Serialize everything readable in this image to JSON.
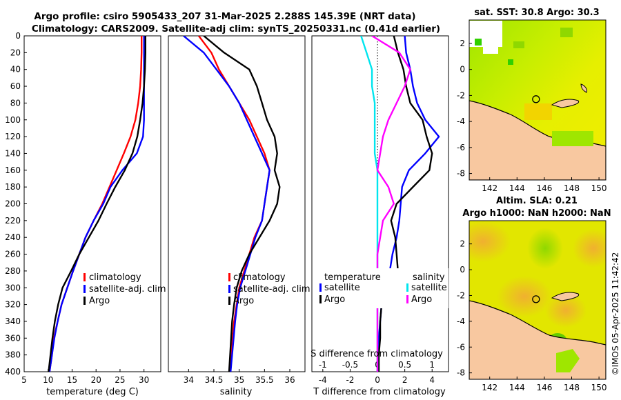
{
  "header": {
    "line1": "Argo profile: csiro 5905433_207 31-Mar-2025 2.288S 145.39E (NRT data)",
    "line2": "Climatology: CARS2009. Satellite-adj clim: synTS_20250331.nc (0.41d earlier)"
  },
  "colors": {
    "climatology": "#ff0000",
    "satellite": "#0000ff",
    "argo": "#000000",
    "sat_salinity": "#00e5ee",
    "argo_salinity": "#ff00ff",
    "land": "#f8c8a0"
  },
  "chart_data": [
    {
      "type": "line",
      "panel": "temperature",
      "xlabel": "temperature (deg C)",
      "ylabel": "",
      "xlim": [
        5,
        33.5
      ],
      "ylim": [
        400,
        0
      ],
      "xticks": [
        5,
        10,
        15,
        20,
        25,
        30
      ],
      "yticks": [
        0,
        20,
        40,
        60,
        80,
        100,
        120,
        140,
        160,
        180,
        200,
        220,
        240,
        260,
        280,
        300,
        320,
        340,
        360,
        380,
        400
      ],
      "legend": [
        "climatology",
        "satellite-adj. clim",
        "Argo"
      ],
      "legend_position": "bottom-right",
      "series": [
        {
          "name": "climatology",
          "color": "#ff0000",
          "x": [
            29.5,
            29.5,
            29.4,
            29.2,
            28.8,
            28.2,
            27.2,
            25.8,
            24.3,
            22.8,
            21.3,
            19.5,
            17.8,
            16.5,
            15.2,
            14.0,
            12.8,
            12.0,
            11.2,
            10.8,
            10.3
          ],
          "y": [
            0,
            20,
            40,
            60,
            80,
            100,
            120,
            140,
            160,
            180,
            200,
            220,
            240,
            260,
            280,
            300,
            320,
            340,
            360,
            380,
            400
          ]
        },
        {
          "name": "satellite-adj. clim",
          "color": "#0000ff",
          "x": [
            30.0,
            30.0,
            30.0,
            30.0,
            30.0,
            30.0,
            29.8,
            28.5,
            25.5,
            23.0,
            21.5,
            19.5,
            17.8,
            16.5,
            15.2,
            14.0,
            12.8,
            12.0,
            11.3,
            10.8,
            10.3
          ],
          "y": [
            0,
            20,
            40,
            60,
            80,
            100,
            120,
            140,
            160,
            180,
            200,
            220,
            240,
            260,
            280,
            300,
            320,
            340,
            360,
            380,
            400
          ]
        },
        {
          "name": "Argo",
          "color": "#000000",
          "x": [
            30.3,
            30.3,
            30.2,
            30.0,
            29.7,
            29.2,
            28.6,
            27.6,
            26.0,
            24.0,
            22.2,
            20.5,
            18.5,
            16.5,
            14.8,
            13.0,
            12.1,
            11.4,
            10.9,
            10.5,
            10.1
          ],
          "y": [
            0,
            20,
            40,
            60,
            80,
            100,
            120,
            140,
            160,
            180,
            200,
            220,
            240,
            260,
            280,
            300,
            320,
            340,
            360,
            380,
            400
          ]
        }
      ]
    },
    {
      "type": "line",
      "panel": "salinity",
      "xlabel": "salinity",
      "xlim": [
        33.6,
        36.3
      ],
      "ylim": [
        400,
        0
      ],
      "xticks": [
        34,
        34.5,
        35,
        35.5,
        36
      ],
      "legend": [
        "climatology",
        "satellite-adj. clim",
        "Argo"
      ],
      "legend_position": "bottom-right",
      "series": [
        {
          "name": "climatology",
          "color": "#ff0000",
          "x": [
            34.2,
            34.45,
            34.6,
            34.8,
            35.0,
            35.2,
            35.35,
            35.5,
            35.6,
            35.55,
            35.5,
            35.45,
            35.3,
            35.2,
            35.1,
            35.0,
            34.95,
            34.9,
            34.87,
            34.85,
            34.82
          ],
          "y": [
            0,
            20,
            40,
            60,
            80,
            100,
            120,
            140,
            160,
            180,
            200,
            220,
            240,
            260,
            280,
            300,
            320,
            340,
            360,
            380,
            400
          ]
        },
        {
          "name": "satellite-adj. clim",
          "color": "#0000ff",
          "x": [
            33.9,
            34.3,
            34.55,
            34.8,
            35.0,
            35.15,
            35.3,
            35.45,
            35.6,
            35.55,
            35.5,
            35.45,
            35.32,
            35.22,
            35.12,
            35.02,
            34.96,
            34.92,
            34.89,
            34.86,
            34.83
          ],
          "y": [
            0,
            20,
            40,
            60,
            80,
            100,
            120,
            140,
            160,
            180,
            200,
            220,
            240,
            260,
            280,
            300,
            320,
            340,
            360,
            380,
            400
          ]
        },
        {
          "name": "Argo",
          "color": "#000000",
          "x": [
            34.3,
            34.7,
            35.2,
            35.35,
            35.45,
            35.55,
            35.7,
            35.75,
            35.7,
            35.8,
            35.75,
            35.6,
            35.4,
            35.2,
            35.05,
            34.95,
            34.9,
            34.86,
            34.84,
            34.82,
            34.8
          ],
          "y": [
            0,
            20,
            40,
            60,
            80,
            100,
            120,
            140,
            160,
            180,
            200,
            220,
            240,
            260,
            280,
            300,
            320,
            340,
            360,
            380,
            400
          ]
        }
      ]
    },
    {
      "type": "line",
      "panel": "difference",
      "xlabel": "T difference from climatology",
      "xlabel_top": "S difference from climatology",
      "xlim": [
        -4.8,
        5.2
      ],
      "xticks": [
        -4,
        -2,
        0,
        2,
        4
      ],
      "x2lim": [
        -1.2,
        1.3
      ],
      "x2ticks": [
        -1,
        -0.5,
        0,
        0.5,
        1
      ],
      "x2ticklabels": [
        "-1",
        "-0.5",
        "0",
        "0.5",
        "1"
      ],
      "ylim": [
        400,
        0
      ],
      "legend_temperature_title": "temperature",
      "legend_salinity_title": "salinity",
      "legend_temperature": [
        "satellite",
        "Argo"
      ],
      "legend_salinity": [
        "satellite",
        "Argo"
      ],
      "series": [
        {
          "name": "temperature satellite",
          "color": "#0000ff",
          "axis": "T",
          "x": [
            2.0,
            2.1,
            2.4,
            2.6,
            2.9,
            3.5,
            4.5,
            3.5,
            2.3,
            1.8,
            1.7,
            1.6,
            1.4,
            1.1,
            0.9,
            0.6,
            0.3,
            0.2,
            0.1,
            0.05,
            0.0
          ],
          "y": [
            0,
            20,
            40,
            60,
            80,
            100,
            120,
            140,
            160,
            180,
            200,
            220,
            240,
            260,
            280,
            300,
            320,
            340,
            360,
            380,
            400
          ]
        },
        {
          "name": "temperature Argo",
          "color": "#000000",
          "axis": "T",
          "x": [
            1.2,
            1.5,
            1.9,
            2.1,
            2.4,
            3.3,
            3.6,
            4.0,
            3.8,
            2.6,
            1.4,
            1.0,
            1.3,
            1.4,
            1.5,
            0.8,
            0.3,
            0.2,
            0.2,
            0.1,
            0.1
          ],
          "y": [
            0,
            20,
            40,
            60,
            80,
            100,
            120,
            140,
            160,
            180,
            200,
            220,
            240,
            260,
            280,
            300,
            320,
            340,
            360,
            380,
            400
          ]
        },
        {
          "name": "salinity satellite",
          "color": "#00e5ee",
          "axis": "S",
          "x": [
            -0.3,
            -0.2,
            -0.1,
            -0.1,
            -0.05,
            -0.05,
            -0.05,
            -0.05,
            0.0,
            0.0,
            0.0,
            0.0,
            0.0,
            0.0,
            0.0,
            0.0,
            0.0,
            0.0,
            0.0,
            0.0,
            0.0
          ],
          "y": [
            0,
            20,
            40,
            60,
            80,
            100,
            120,
            140,
            160,
            180,
            200,
            220,
            240,
            260,
            280,
            300,
            320,
            340,
            360,
            380,
            400
          ]
        },
        {
          "name": "salinity Argo",
          "color": "#ff00ff",
          "axis": "S",
          "x": [
            -0.1,
            0.4,
            0.6,
            0.5,
            0.35,
            0.2,
            0.1,
            0.05,
            0.0,
            0.2,
            0.3,
            0.1,
            0.05,
            0.0,
            0.0,
            0.0,
            0.0,
            0.0,
            0.0,
            0.0,
            0.0
          ],
          "y": [
            0,
            20,
            40,
            60,
            80,
            100,
            120,
            140,
            160,
            180,
            200,
            220,
            240,
            260,
            280,
            300,
            320,
            340,
            360,
            380,
            400
          ]
        }
      ]
    },
    {
      "type": "heatmap",
      "panel": "sst_map",
      "title": "sat. SST: 30.8 Argo: 30.3",
      "xlim": [
        140.5,
        150.5
      ],
      "ylim": [
        -8.5,
        3.8
      ],
      "xticks": [
        142,
        144,
        146,
        148,
        150
      ],
      "yticks": [
        -8,
        -6,
        -4,
        -2,
        0,
        2
      ],
      "marker": {
        "lon": 145.39,
        "lat": -2.288
      }
    },
    {
      "type": "heatmap",
      "panel": "sla_map",
      "title": "Altim. SLA: 0.21",
      "subtitle": "Argo h1000: NaN h2000: NaN",
      "xlim": [
        140.5,
        150.5
      ],
      "ylim": [
        -8.5,
        3.8
      ],
      "xticks": [
        142,
        144,
        146,
        148,
        150
      ],
      "yticks": [
        -8,
        -6,
        -4,
        -2,
        0,
        2
      ],
      "marker": {
        "lon": 145.39,
        "lat": -2.288
      }
    }
  ],
  "credit": "©IMOS 05-Apr-2025 11:42:42"
}
